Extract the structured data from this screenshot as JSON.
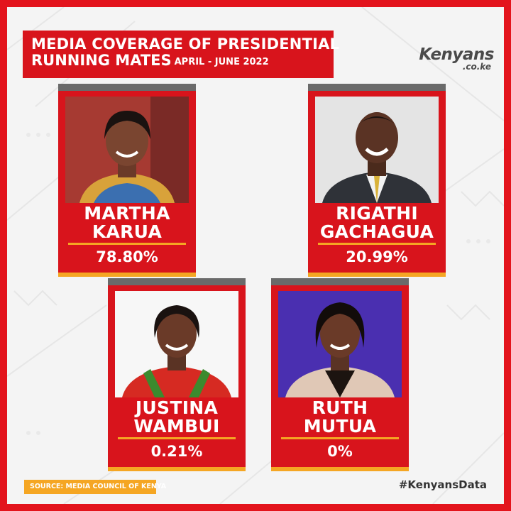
{
  "title": {
    "line1": "MEDIA COVERAGE OF PRESIDENTIAL",
    "line2": "RUNNING MATES",
    "subtitle": "APRIL - JUNE 2022"
  },
  "logo": {
    "main": "Kenyans",
    "sub": ".co.ke"
  },
  "source": "SOURCE: MEDIA COUNCIL OF KENYA",
  "hashtag": "#KenyansData",
  "colors": {
    "brand_red": "#d8141c",
    "accent_orange": "#f5a623",
    "card_top_gray": "#6a6a6a"
  },
  "cards": [
    {
      "name_line1": "MARTHA",
      "name_line2": "KARUA",
      "value": "78.80%"
    },
    {
      "name_line1": "RIGATHI",
      "name_line2": "GACHAGUA",
      "value": "20.99%"
    },
    {
      "name_line1": "JUSTINA",
      "name_line2": "WAMBUI",
      "value": "0.21%"
    },
    {
      "name_line1": "RUTH",
      "name_line2": "MUTUA",
      "value": "0%"
    }
  ],
  "chart_data": {
    "type": "table",
    "title": "MEDIA COVERAGE OF PRESIDENTIAL RUNNING MATES",
    "subtitle": "APRIL - JUNE 2022",
    "categories": [
      "MARTHA KARUA",
      "RIGATHI GACHAGUA",
      "JUSTINA WAMBUI",
      "RUTH MUTUA"
    ],
    "values": [
      78.8,
      20.99,
      0.21,
      0
    ]
  }
}
